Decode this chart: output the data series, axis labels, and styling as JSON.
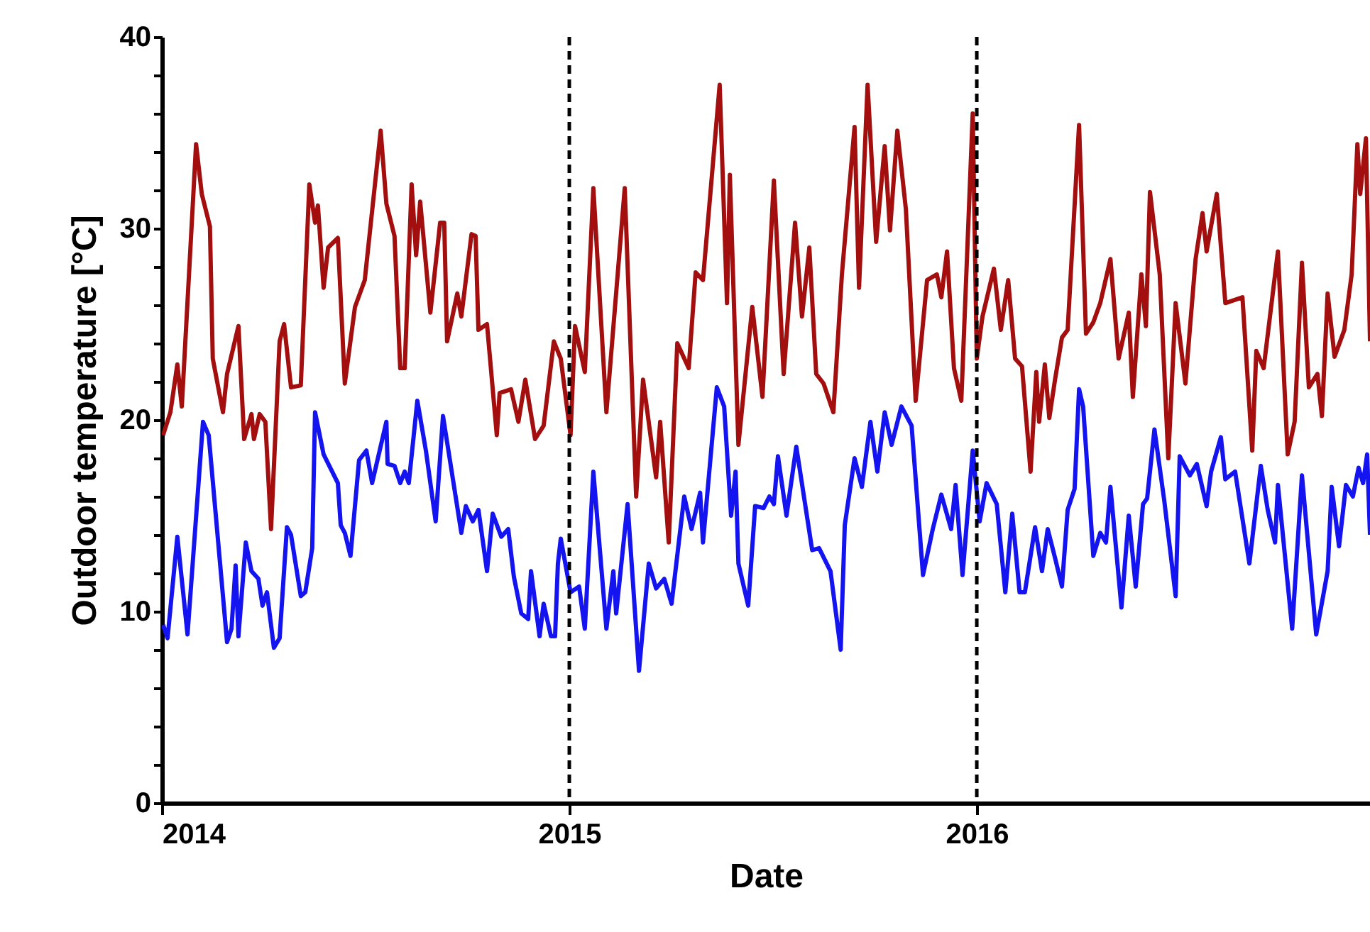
{
  "chart_data": {
    "type": "line",
    "xlabel": "Date",
    "ylabel": "Outdoor temperature [°C]",
    "xlim": [
      2014,
      2016.965
    ],
    "xticks": [
      2014,
      2015,
      2016
    ],
    "ylim": [
      0,
      40
    ],
    "yticks": [
      0,
      {
        "value": 2,
        "label": null
      },
      {
        "value": 4,
        "label": null
      },
      {
        "value": 6,
        "label": null
      },
      {
        "value": 8,
        "label": null
      },
      10,
      {
        "value": 12,
        "label": null
      },
      {
        "value": 14,
        "label": null
      },
      {
        "value": 16,
        "label": null
      },
      {
        "value": 18,
        "label": null
      },
      20,
      {
        "value": 22,
        "label": null
      },
      {
        "value": 24,
        "label": null
      },
      {
        "value": 26,
        "label": null
      },
      {
        "value": 28,
        "label": null
      },
      30,
      {
        "value": 32,
        "label": null
      },
      {
        "value": 34,
        "label": null
      },
      {
        "value": 36,
        "label": null
      },
      {
        "value": 38,
        "label": null
      },
      40
    ],
    "grid": false,
    "line_style": "solid",
    "marker": "none",
    "ref_lines": [
      {
        "axis": "x",
        "value": 2015,
        "color": "#000000",
        "line_style": "dashed"
      },
      {
        "axis": "x",
        "value": 2016,
        "color": "#000000",
        "line_style": "dashed"
      }
    ],
    "series": [
      {
        "color": "#a30e0e",
        "x": [
          2014.003,
          2014.021,
          2014.038,
          2014.049,
          2014.084,
          2014.098,
          2014.118,
          2014.125,
          2014.15,
          2014.16,
          2014.188,
          2014.202,
          2014.22,
          2014.226,
          2014.24,
          2014.254,
          2014.268,
          2014.289,
          2014.3,
          2014.317,
          2014.341,
          2014.362,
          2014.376,
          2014.383,
          2014.397,
          2014.408,
          2014.432,
          2014.449,
          2014.474,
          2014.498,
          2014.537,
          2014.551,
          2014.571,
          2014.585,
          2014.596,
          2014.613,
          2014.624,
          2014.634,
          2014.659,
          2014.683,
          2014.693,
          2014.7,
          2014.725,
          2014.735,
          2014.76,
          2014.77,
          2014.777,
          2014.798,
          2014.822,
          2014.829,
          2014.857,
          2014.875,
          2014.892,
          2014.916,
          2014.937,
          2014.962,
          2014.979,
          2015.003,
          2015.014,
          2015.038,
          2015.059,
          2015.091,
          2015.136,
          2015.164,
          2015.181,
          2015.213,
          2015.223,
          2015.244,
          2015.265,
          2015.293,
          2015.31,
          2015.328,
          2015.369,
          2015.387,
          2015.394,
          2015.415,
          2015.449,
          2015.474,
          2015.502,
          2015.526,
          2015.554,
          2015.571,
          2015.589,
          2015.606,
          2015.624,
          2015.648,
          2015.669,
          2015.7,
          2015.711,
          2015.732,
          2015.753,
          2015.774,
          2015.787,
          2015.805,
          2015.826,
          2015.85,
          2015.878,
          2015.902,
          2015.913,
          2015.927,
          2015.944,
          2015.962,
          2015.99,
          2016.0,
          2016.014,
          2016.042,
          2016.059,
          2016.077,
          2016.094,
          2016.111,
          2016.132,
          2016.146,
          2016.153,
          2016.167,
          2016.178,
          2016.192,
          2016.209,
          2016.223,
          2016.251,
          2016.268,
          2016.286,
          2016.303,
          2016.328,
          2016.348,
          2016.373,
          2016.383,
          2016.404,
          2016.415,
          2016.425,
          2016.449,
          2016.47,
          2016.488,
          2016.512,
          2016.537,
          2016.554,
          2016.564,
          2016.589,
          2016.61,
          2016.652,
          2016.676,
          2016.686,
          2016.704,
          2016.739,
          2016.763,
          2016.78,
          2016.798,
          2016.815,
          2016.836,
          2016.847,
          2016.861,
          2016.878,
          2016.902,
          2016.92,
          2016.934,
          2016.941,
          2016.955,
          2016.965
        ],
        "values": [
          19.2,
          20.4,
          22.9,
          20.7,
          34.4,
          31.8,
          30.1,
          23.2,
          20.4,
          22.4,
          24.9,
          19.0,
          20.3,
          19.0,
          20.3,
          19.9,
          14.3,
          24.1,
          25.0,
          21.7,
          21.8,
          32.3,
          30.3,
          31.2,
          26.9,
          29.0,
          29.5,
          21.9,
          25.9,
          27.3,
          35.1,
          31.3,
          29.6,
          22.7,
          22.7,
          32.3,
          28.6,
          31.4,
          25.6,
          30.3,
          30.3,
          24.1,
          26.6,
          25.4,
          29.7,
          29.6,
          24.7,
          25.0,
          19.2,
          21.4,
          21.6,
          19.9,
          22.1,
          19.0,
          19.7,
          24.1,
          23.2,
          19.2,
          24.9,
          22.5,
          32.1,
          20.4,
          32.1,
          16.0,
          22.1,
          17.0,
          19.9,
          13.6,
          24.0,
          22.7,
          27.7,
          27.3,
          37.5,
          26.1,
          32.8,
          18.7,
          25.9,
          21.2,
          32.5,
          22.4,
          30.3,
          25.4,
          29.0,
          22.4,
          21.9,
          20.4,
          27.6,
          35.3,
          26.9,
          37.5,
          29.3,
          34.3,
          29.9,
          35.1,
          31.0,
          21.0,
          27.3,
          27.6,
          26.4,
          28.8,
          22.7,
          21.0,
          36.0,
          23.2,
          25.4,
          27.9,
          24.7,
          27.3,
          23.2,
          22.8,
          17.3,
          22.5,
          19.9,
          22.9,
          20.1,
          22.1,
          24.3,
          24.7,
          35.4,
          24.5,
          25.1,
          26.1,
          28.4,
          23.2,
          25.6,
          21.2,
          27.6,
          24.9,
          31.9,
          27.6,
          18.0,
          26.1,
          21.9,
          28.4,
          30.8,
          28.8,
          31.8,
          26.1,
          26.4,
          18.4,
          23.6,
          22.7,
          28.8,
          18.2,
          19.9,
          28.2,
          21.7,
          22.4,
          20.2,
          26.6,
          23.3,
          24.7,
          27.6,
          34.4,
          31.8,
          34.7,
          24.1
        ]
      },
      {
        "color": "#1414f0",
        "x": [
          2014.003,
          2014.014,
          2014.038,
          2014.063,
          2014.101,
          2014.115,
          2014.16,
          2014.171,
          2014.181,
          2014.188,
          2014.206,
          2014.22,
          2014.237,
          2014.247,
          2014.258,
          2014.275,
          2014.289,
          2014.307,
          2014.317,
          2014.341,
          2014.352,
          2014.369,
          2014.376,
          2014.397,
          2014.432,
          2014.439,
          2014.449,
          2014.463,
          2014.484,
          2014.502,
          2014.516,
          2014.551,
          2014.554,
          2014.571,
          2014.585,
          2014.596,
          2014.606,
          2014.627,
          2014.648,
          2014.672,
          2014.69,
          2014.735,
          2014.746,
          2014.763,
          2014.777,
          2014.798,
          2014.812,
          2014.833,
          2014.85,
          2014.864,
          2014.882,
          2014.899,
          2014.906,
          2014.927,
          2014.937,
          2014.955,
          2014.965,
          2014.972,
          2014.979,
          2015.003,
          2015.024,
          2015.038,
          2015.059,
          2015.091,
          2015.108,
          2015.115,
          2015.143,
          2015.171,
          2015.195,
          2015.213,
          2015.233,
          2015.251,
          2015.282,
          2015.3,
          2015.321,
          2015.328,
          2015.362,
          2015.38,
          2015.397,
          2015.408,
          2015.415,
          2015.439,
          2015.456,
          2015.477,
          2015.491,
          2015.502,
          2015.512,
          2015.533,
          2015.557,
          2015.596,
          2015.613,
          2015.641,
          2015.666,
          2015.676,
          2015.7,
          2015.718,
          2015.739,
          2015.756,
          2015.774,
          2015.791,
          2015.815,
          2015.84,
          2015.868,
          2015.892,
          2015.913,
          2015.937,
          2015.948,
          2015.965,
          2015.99,
          2016.007,
          2016.024,
          2016.049,
          2016.07,
          2016.087,
          2016.105,
          2016.118,
          2016.143,
          2016.16,
          2016.174,
          2016.192,
          2016.209,
          2016.223,
          2016.24,
          2016.251,
          2016.261,
          2016.286,
          2016.303,
          2016.317,
          2016.328,
          2016.355,
          2016.373,
          2016.39,
          2016.408,
          2016.418,
          2016.436,
          2016.46,
          2016.488,
          2016.498,
          2016.523,
          2016.54,
          2016.564,
          2016.575,
          2016.599,
          2016.61,
          2016.634,
          2016.669,
          2016.697,
          2016.714,
          2016.732,
          2016.739,
          2016.774,
          2016.798,
          2016.833,
          2016.861,
          2016.871,
          2016.889,
          2016.906,
          2016.923,
          2016.937,
          2016.948,
          2016.958,
          2016.965
        ],
        "values": [
          9.3,
          8.6,
          13.9,
          8.8,
          19.9,
          19.2,
          8.4,
          9.1,
          12.4,
          8.7,
          13.6,
          12.1,
          11.7,
          10.3,
          11.0,
          8.1,
          8.6,
          14.4,
          14.0,
          10.8,
          11.0,
          13.3,
          20.4,
          18.2,
          16.7,
          14.5,
          14.1,
          12.9,
          17.9,
          18.4,
          16.7,
          19.9,
          17.7,
          17.6,
          16.7,
          17.3,
          16.7,
          21.0,
          18.4,
          14.7,
          20.2,
          14.1,
          15.5,
          14.7,
          15.3,
          12.1,
          15.1,
          13.9,
          14.3,
          11.8,
          9.9,
          9.6,
          12.1,
          8.7,
          10.4,
          8.7,
          8.7,
          12.5,
          13.8,
          11.0,
          11.3,
          9.1,
          17.3,
          9.1,
          12.1,
          9.9,
          15.6,
          6.9,
          12.5,
          11.2,
          11.7,
          10.4,
          16.0,
          14.3,
          16.2,
          13.6,
          21.7,
          20.7,
          15.0,
          17.3,
          12.5,
          10.3,
          15.5,
          15.4,
          16.0,
          15.6,
          18.1,
          15.0,
          18.6,
          13.2,
          13.3,
          12.1,
          8.0,
          14.5,
          18.0,
          16.5,
          19.9,
          17.3,
          20.4,
          18.7,
          20.7,
          19.7,
          11.9,
          14.3,
          16.1,
          14.3,
          16.6,
          11.9,
          18.4,
          14.7,
          16.7,
          15.6,
          11.0,
          15.1,
          11.0,
          11.0,
          14.4,
          12.1,
          14.3,
          12.8,
          11.3,
          15.3,
          16.4,
          21.6,
          20.7,
          12.9,
          14.1,
          13.6,
          16.5,
          10.2,
          15.0,
          11.3,
          15.6,
          15.9,
          19.5,
          15.8,
          10.8,
          18.1,
          17.1,
          17.7,
          15.5,
          17.3,
          19.1,
          16.9,
          17.3,
          12.5,
          17.6,
          15.3,
          13.6,
          16.6,
          9.1,
          17.1,
          8.8,
          12.1,
          16.5,
          13.4,
          16.6,
          16.0,
          17.5,
          16.7,
          18.2,
          14.0
        ]
      }
    ]
  }
}
